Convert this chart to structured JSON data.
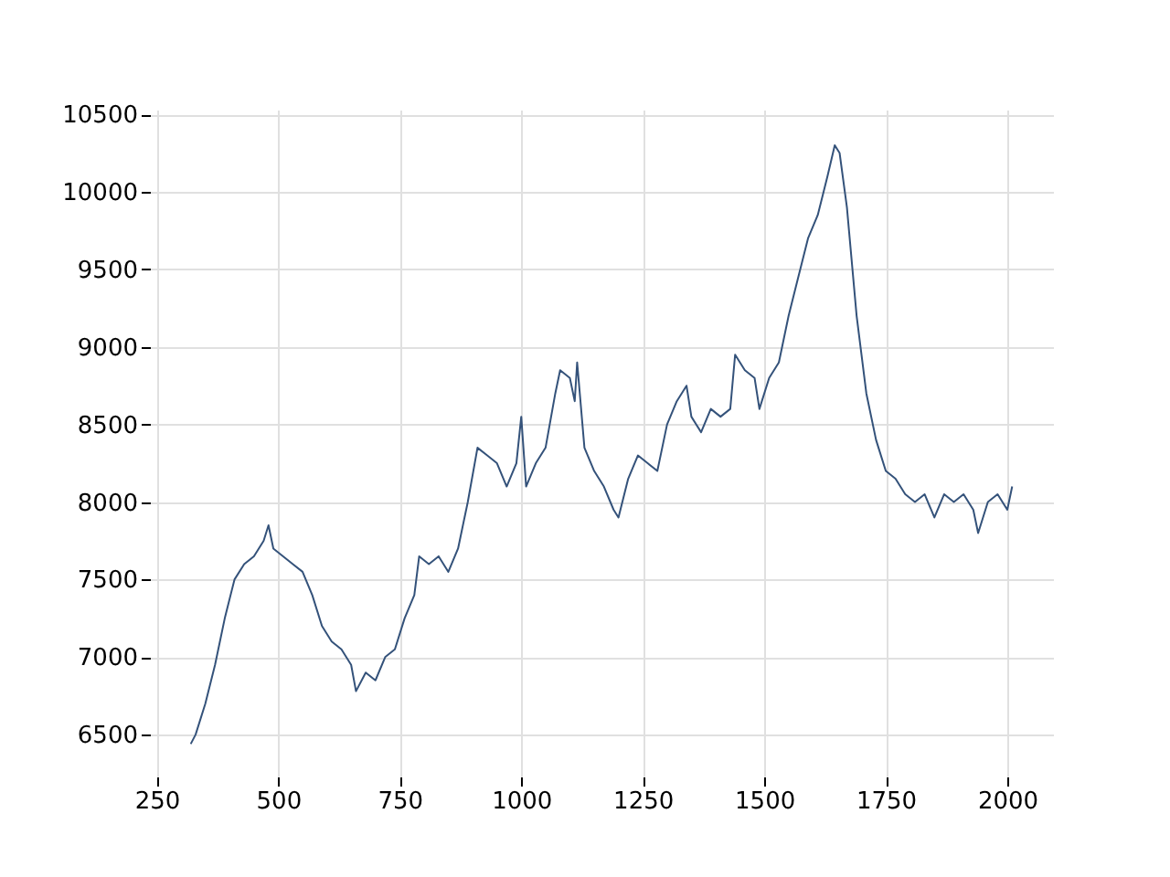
{
  "chart_data": {
    "type": "line",
    "grid": true,
    "xlim": [
      236,
      2094
    ],
    "ylim": [
      6230,
      10530
    ],
    "xticks": [
      250,
      500,
      750,
      1000,
      1250,
      1500,
      1750,
      2000
    ],
    "yticks": [
      6500,
      7000,
      7500,
      8000,
      8500,
      9000,
      9500,
      10000,
      10500
    ],
    "series": [
      {
        "color": "#34527a",
        "x": [
          320,
          330,
          350,
          370,
          390,
          410,
          430,
          450,
          470,
          480,
          490,
          510,
          530,
          550,
          570,
          590,
          610,
          630,
          650,
          660,
          680,
          700,
          720,
          740,
          760,
          780,
          790,
          810,
          830,
          850,
          870,
          890,
          910,
          930,
          950,
          970,
          990,
          1000,
          1010,
          1030,
          1050,
          1070,
          1080,
          1100,
          1110,
          1115,
          1130,
          1150,
          1170,
          1190,
          1200,
          1220,
          1240,
          1260,
          1280,
          1300,
          1320,
          1340,
          1350,
          1370,
          1390,
          1410,
          1430,
          1440,
          1460,
          1480,
          1490,
          1510,
          1530,
          1550,
          1570,
          1590,
          1610,
          1630,
          1645,
          1655,
          1670,
          1690,
          1710,
          1730,
          1750,
          1770,
          1790,
          1810,
          1830,
          1850,
          1870,
          1890,
          1910,
          1930,
          1940,
          1960,
          1980,
          2000,
          2010
        ],
        "values": [
          6440,
          6500,
          6700,
          6950,
          7250,
          7500,
          7600,
          7650,
          7750,
          7850,
          7700,
          7650,
          7600,
          7550,
          7400,
          7200,
          7100,
          7050,
          6950,
          6780,
          6900,
          6850,
          7000,
          7050,
          7250,
          7400,
          7650,
          7600,
          7650,
          7550,
          7700,
          8000,
          8350,
          8300,
          8250,
          8100,
          8250,
          8550,
          8100,
          8250,
          8350,
          8700,
          8850,
          8800,
          8650,
          8900,
          8350,
          8200,
          8100,
          7950,
          7900,
          8150,
          8300,
          8250,
          8200,
          8500,
          8650,
          8750,
          8550,
          8450,
          8600,
          8550,
          8600,
          8950,
          8850,
          8800,
          8600,
          8800,
          8900,
          9200,
          9450,
          9700,
          9850,
          10100,
          10300,
          10250,
          9900,
          9200,
          8700,
          8400,
          8200,
          8150,
          8050,
          8000,
          8050,
          7900,
          8050,
          8000,
          8050,
          7950,
          7800,
          8000,
          8050,
          7950,
          8100
        ]
      }
    ]
  }
}
